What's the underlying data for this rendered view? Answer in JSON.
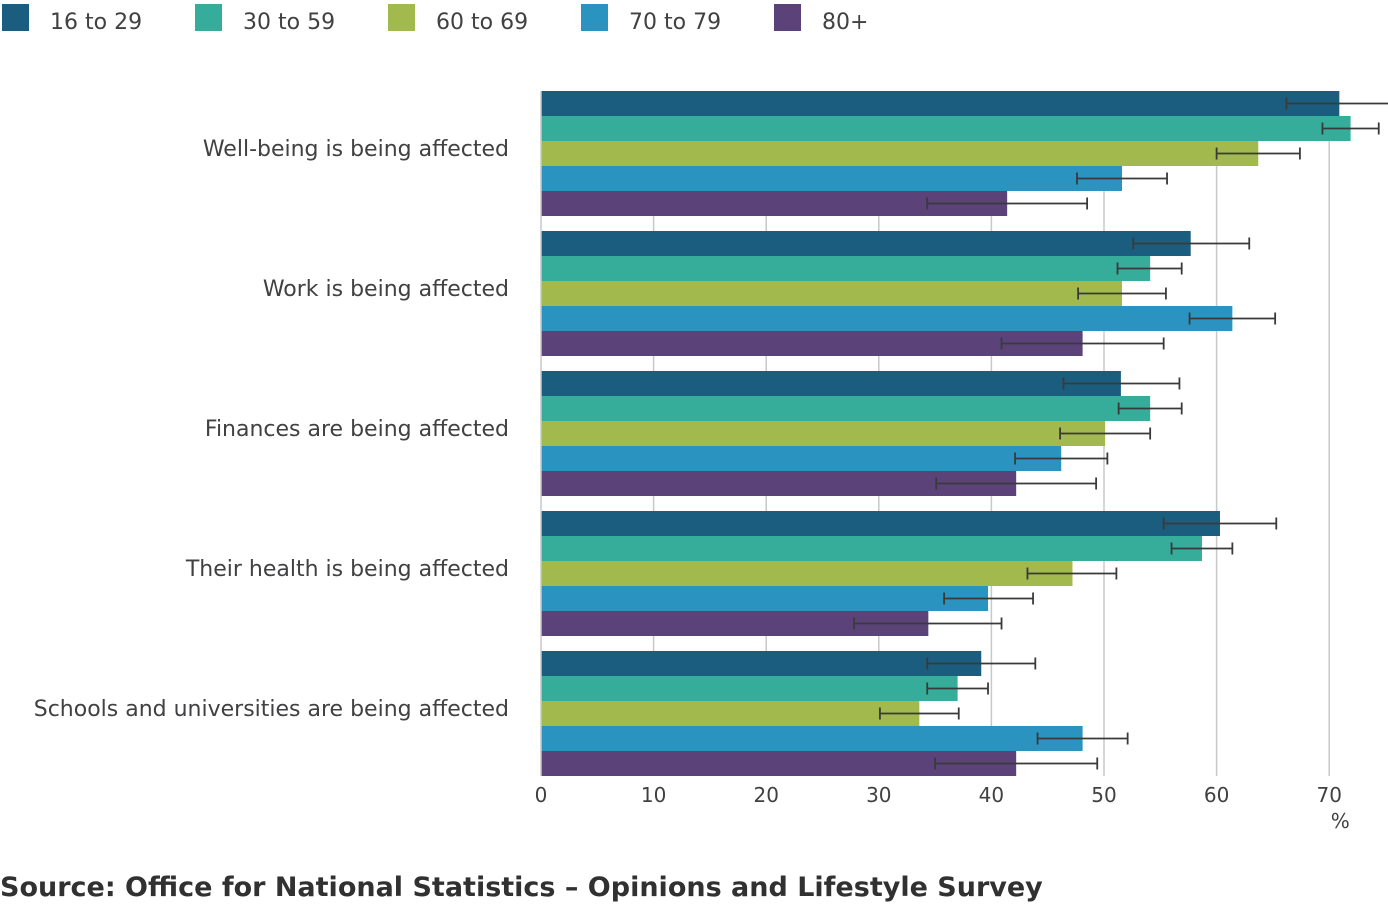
{
  "chart_data": {
    "type": "bar",
    "orientation": "horizontal",
    "title": "",
    "xlabel": "%",
    "ylabel": "",
    "xlim": [
      0,
      75
    ],
    "xticks": [
      0,
      10,
      20,
      30,
      40,
      50,
      60,
      70
    ],
    "grid": true,
    "legend_position": "top-left",
    "categories": [
      "Well-being is being affected",
      "Work is being affected",
      "Finances are being affected",
      "Their health is being affected",
      "Schools and universities are being affected"
    ],
    "series": [
      {
        "name": "16 to 29",
        "color": "#1a5d7e",
        "values": [
          70.9,
          57.7,
          51.5,
          60.3,
          39.1
        ],
        "error_low": [
          66.2,
          52.6,
          46.4,
          55.3,
          34.3
        ],
        "error_high": [
          75.5,
          62.9,
          56.7,
          65.3,
          43.9
        ]
      },
      {
        "name": "30 to 59",
        "color": "#36ac9a",
        "values": [
          71.9,
          54.1,
          54.1,
          58.7,
          37.0
        ],
        "error_low": [
          69.4,
          51.2,
          51.3,
          56.0,
          34.3
        ],
        "error_high": [
          74.4,
          56.9,
          56.9,
          61.4,
          39.7
        ]
      },
      {
        "name": "60 to 69",
        "color": "#a1b94d",
        "values": [
          63.7,
          51.6,
          50.1,
          47.2,
          33.6
        ],
        "error_low": [
          60.0,
          47.7,
          46.1,
          43.2,
          30.1
        ],
        "error_high": [
          67.4,
          55.5,
          54.1,
          51.1,
          37.1
        ]
      },
      {
        "name": "70 to 79",
        "color": "#2a93bf",
        "values": [
          51.6,
          61.4,
          46.2,
          39.7,
          48.1
        ],
        "error_low": [
          47.6,
          57.6,
          42.1,
          35.8,
          44.1
        ],
        "error_high": [
          55.6,
          65.2,
          50.3,
          43.7,
          52.1
        ]
      },
      {
        "name": "80+",
        "color": "#5b437a",
        "values": [
          41.4,
          48.1,
          42.2,
          34.4,
          42.2
        ],
        "error_low": [
          34.3,
          40.9,
          35.1,
          27.8,
          35.0
        ],
        "error_high": [
          48.5,
          55.3,
          49.3,
          40.9,
          49.4
        ]
      }
    ]
  },
  "source": "Source: Office for National Statistics – Opinions and Lifestyle Survey"
}
